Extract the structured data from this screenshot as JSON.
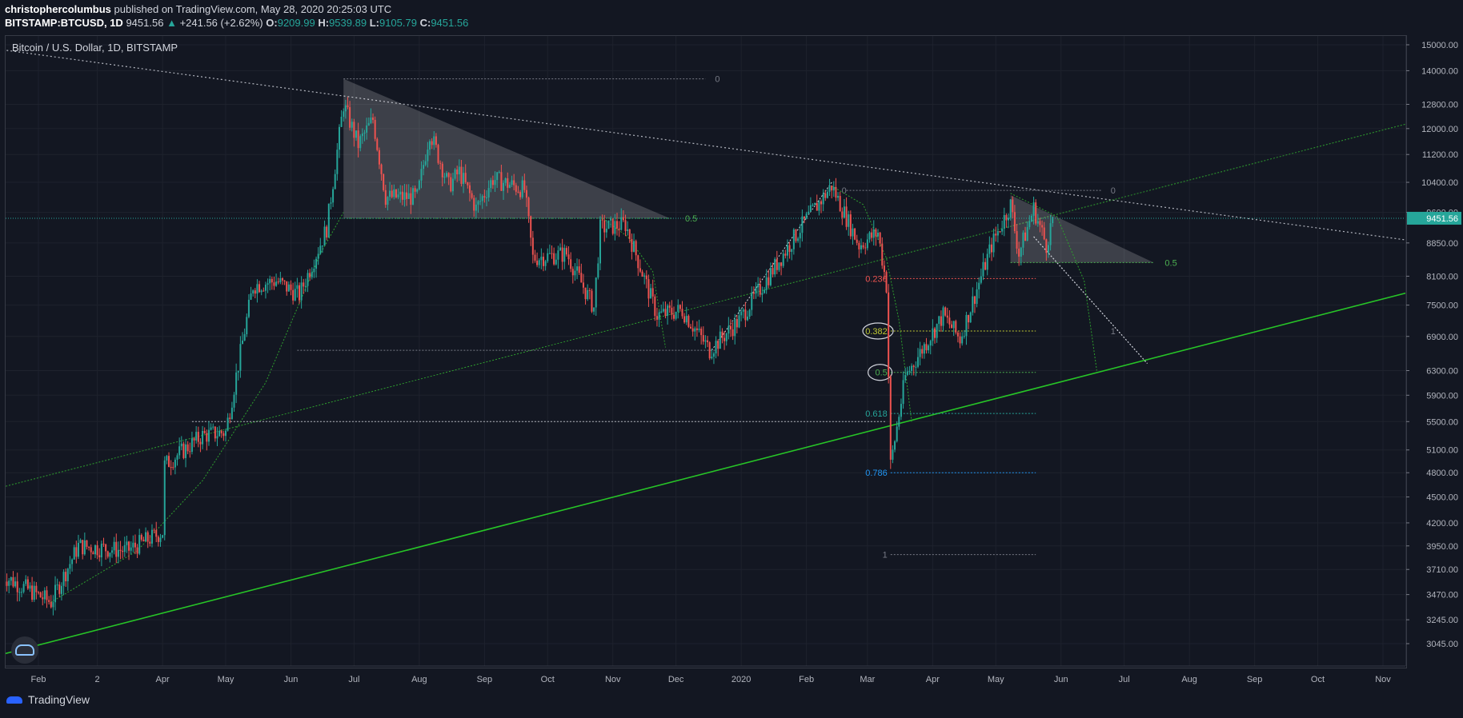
{
  "header": {
    "author": "christophercolumbus",
    "published_text": "published on TradingView.com, May 28, 2020 20:25:03 UTC",
    "symbol": "BITSTAMP:BTCUSD, 1D",
    "last": "9451.56",
    "change_arrow": "▲",
    "change": "+241.56 (+2.62%)",
    "o_label": "O:",
    "o_value": "9209.99",
    "h_label": "H:",
    "h_value": "9539.89",
    "l_label": "L:",
    "l_value": "9105.79",
    "c_label": "C:",
    "c_value": "9451.56"
  },
  "chart_title": "Bitcoin / U.S. Dollar, 1D, BITSTAMP",
  "footer": {
    "brand": "TradingView"
  },
  "colors": {
    "background": "#131722",
    "up": "#26a69a",
    "down": "#ef5350",
    "fib_green": "#4caf50",
    "trend_green": "#27c427",
    "price_label_bg": "#26a69a"
  },
  "icons": {
    "logo": "tradingview-logo-icon",
    "cloud": "cloud-icon"
  },
  "chart_data": {
    "type": "candlestick",
    "title": "Bitcoin / U.S. Dollar, 1D, BITSTAMP",
    "current_price": 9451.56,
    "current_price_label": "9451.56",
    "y_ticks": [
      "15000.00",
      "14000.00",
      "12800.00",
      "12000.00",
      "11200.00",
      "10400.00",
      "9600.00",
      "8850.00",
      "8100.00",
      "7500.00",
      "6900.00",
      "6300.00",
      "5900.00",
      "5500.00",
      "5100.00",
      "4800.00",
      "4500.00",
      "4200.00",
      "3950.00",
      "3710.00",
      "3470.00",
      "3245.00",
      "3045.00"
    ],
    "y_tick_values": [
      15000,
      14000,
      12800,
      12000,
      11200,
      10400,
      9600,
      8850,
      8100,
      7500,
      6900,
      6300,
      5900,
      5500,
      5100,
      4800,
      4500,
      4200,
      3950,
      3710,
      3470,
      3245,
      3045
    ],
    "y_scale": "log",
    "x_ticks": [
      "Feb",
      "2",
      "Apr",
      "May",
      "Jun",
      "Jul",
      "Aug",
      "Sep",
      "Oct",
      "Nov",
      "Dec",
      "2020",
      "Feb",
      "Mar",
      "Apr",
      "May",
      "Jun",
      "Jul",
      "Aug",
      "Sep",
      "Oct",
      "Nov"
    ],
    "x_tick_dates": [
      "2019-02-01",
      "2019-03-01",
      "2019-04-01",
      "2019-05-01",
      "2019-06-01",
      "2019-07-01",
      "2019-08-01",
      "2019-09-01",
      "2019-10-01",
      "2019-11-01",
      "2019-12-01",
      "2020-01-01",
      "2020-02-01",
      "2020-03-01",
      "2020-04-01",
      "2020-05-01",
      "2020-06-01",
      "2020-07-01",
      "2020-08-01",
      "2020-09-01",
      "2020-10-01",
      "2020-11-01"
    ],
    "x_range": [
      "2019-01-15",
      "2020-11-15"
    ],
    "key_points": [
      {
        "date": "2019-01-15",
        "close": 3650
      },
      {
        "date": "2019-02-07",
        "close": 3400
      },
      {
        "date": "2019-02-20",
        "close": 3950
      },
      {
        "date": "2019-03-15",
        "close": 3900
      },
      {
        "date": "2019-04-01",
        "close": 4100
      },
      {
        "date": "2019-04-02",
        "close": 4900
      },
      {
        "date": "2019-04-20",
        "close": 5300
      },
      {
        "date": "2019-05-01",
        "close": 5350
      },
      {
        "date": "2019-05-14",
        "close": 7900
      },
      {
        "date": "2019-05-25",
        "close": 8000
      },
      {
        "date": "2019-06-05",
        "close": 7700
      },
      {
        "date": "2019-06-18",
        "close": 9200
      },
      {
        "date": "2019-06-26",
        "close": 12800
      },
      {
        "date": "2019-07-03",
        "close": 11500
      },
      {
        "date": "2019-07-10",
        "close": 12300
      },
      {
        "date": "2019-07-16",
        "close": 10000
      },
      {
        "date": "2019-07-31",
        "close": 10000
      },
      {
        "date": "2019-08-06",
        "close": 11900
      },
      {
        "date": "2019-08-15",
        "close": 10300
      },
      {
        "date": "2019-08-20",
        "close": 10700
      },
      {
        "date": "2019-08-28",
        "close": 9700
      },
      {
        "date": "2019-09-05",
        "close": 10500
      },
      {
        "date": "2019-09-20",
        "close": 10200
      },
      {
        "date": "2019-09-24",
        "close": 8500
      },
      {
        "date": "2019-10-10",
        "close": 8600
      },
      {
        "date": "2019-10-23",
        "close": 7450
      },
      {
        "date": "2019-10-26",
        "close": 9200
      },
      {
        "date": "2019-11-07",
        "close": 9300
      },
      {
        "date": "2019-11-22",
        "close": 7300
      },
      {
        "date": "2019-12-04",
        "close": 7400
      },
      {
        "date": "2019-12-17",
        "close": 6650
      },
      {
        "date": "2019-12-31",
        "close": 7200
      },
      {
        "date": "2020-01-14",
        "close": 8100
      },
      {
        "date": "2020-01-31",
        "close": 9350
      },
      {
        "date": "2020-02-13",
        "close": 10300
      },
      {
        "date": "2020-02-26",
        "close": 8800
      },
      {
        "date": "2020-03-06",
        "close": 9100
      },
      {
        "date": "2020-03-10",
        "close": 7900
      },
      {
        "date": "2020-03-12",
        "close": 4900
      },
      {
        "date": "2020-03-19",
        "close": 6200
      },
      {
        "date": "2020-04-06",
        "close": 7300
      },
      {
        "date": "2020-04-14",
        "close": 6850
      },
      {
        "date": "2020-04-29",
        "close": 8800
      },
      {
        "date": "2020-05-08",
        "close": 9800
      },
      {
        "date": "2020-05-12",
        "close": 8600
      },
      {
        "date": "2020-05-19",
        "close": 9700
      },
      {
        "date": "2020-05-25",
        "close": 8800
      },
      {
        "date": "2020-05-28",
        "close": 9451.56
      }
    ],
    "annotations": [
      {
        "type": "fib_retracement",
        "levels": [
          {
            "label": "0.236",
            "value": 8050
          },
          {
            "label": "0.382",
            "value": 7000
          },
          {
            "label": "0.5",
            "value": 6270
          },
          {
            "label": "0.618",
            "value": 5620
          },
          {
            "label": "0.786",
            "value": 4800
          },
          {
            "label": "1",
            "value": 3860
          }
        ]
      },
      {
        "type": "fib_small",
        "labels": [
          "0",
          "0.5",
          "0",
          "0.5",
          "0",
          "1"
        ]
      }
    ]
  }
}
